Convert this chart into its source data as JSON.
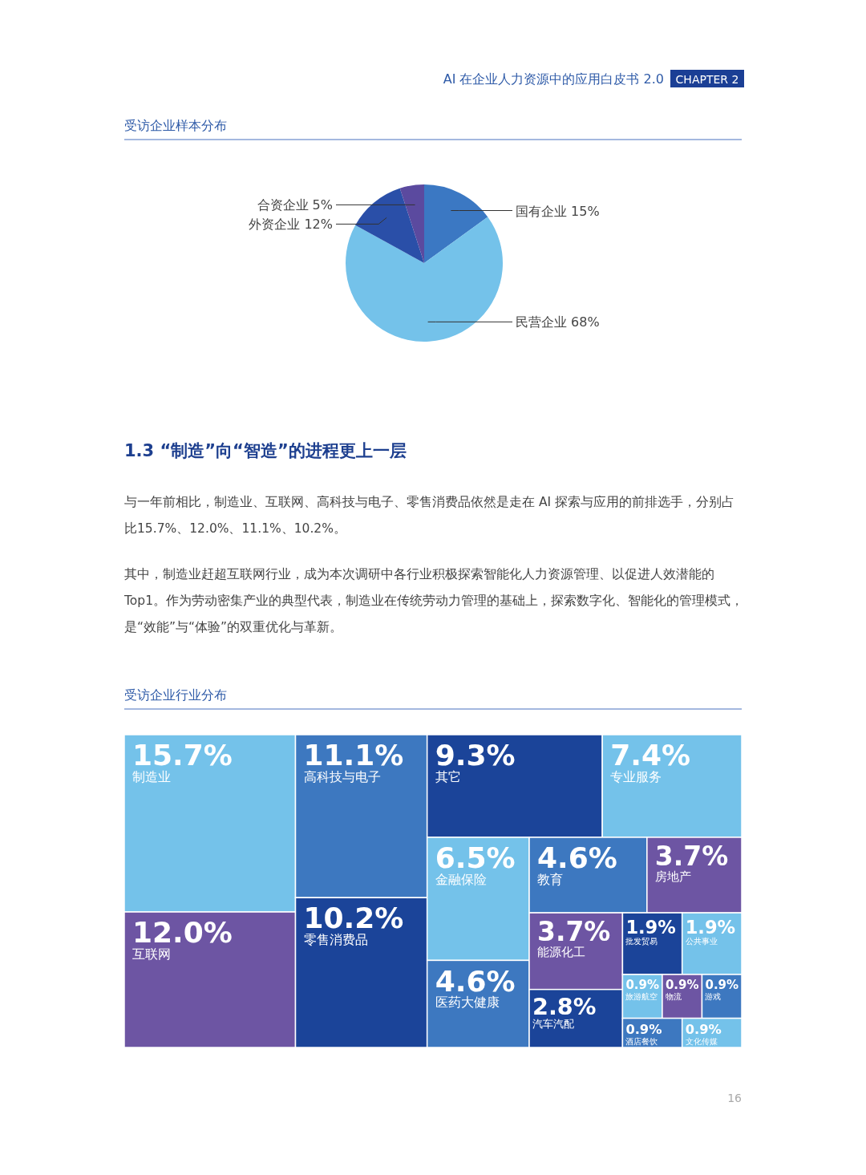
{
  "chart_data": [
    {
      "type": "pie",
      "title": "受访企业样本分布",
      "annotations": [
        "AI 在企业人力资源中的应用白皮书 2.0",
        "CHAPTER 2"
      ],
      "categories": [
        "国有企业",
        "民营企业",
        "外资企业",
        "合资企业"
      ],
      "values": [
        15,
        68,
        12,
        5
      ],
      "value_labels": [
        "15%",
        "68%",
        "12%",
        "5%"
      ],
      "colors": [
        "#3b78c3",
        "#74c2ea",
        "#2a4fa8",
        "#5b4a9f"
      ]
    },
    {
      "type": "other",
      "title": "1.3 “制造”向“智造”的进程更上一层",
      "annotations": [
        "与一年前相比，制造业、互联网、高科技与电子、零售消费品依然是走在 AI 探索与应用的前排选手，分别占比15.7%、12.0%、11.1%、10.2%。",
        "其中，制造业赶超互联网行业，成为本次调研中各行业积极探索智能化人力资源管理、以促进人效潜能的Top1。作为劳动密集产业的典型代表，制造业在传统劳动力管理的基础上，探索数字化、智能化的管理模式，是“效能”与“体验”的双重优化与革新。"
      ]
    },
    {
      "type": "other",
      "title": "受访企业行业分布",
      "annotations": [
        "16"
      ],
      "categories": [
        "制造业",
        "互联网",
        "高科技与电子",
        "零售消费品",
        "其它",
        "专业服务",
        "金融保险",
        "医药大健康",
        "教育",
        "房地产",
        "能源化工",
        "汽车汽配",
        "批发贸易",
        "公共事业",
        "旅游航空",
        "物流",
        "游戏",
        "酒店餐饮",
        "文化传媒"
      ],
      "values": [
        15.7,
        12.0,
        11.1,
        10.2,
        9.3,
        7.4,
        6.5,
        4.6,
        4.6,
        3.7,
        3.7,
        2.8,
        1.9,
        1.9,
        0.9,
        0.9,
        0.9,
        0.9,
        0.9
      ],
      "value_labels": [
        "15.7%",
        "12.0%",
        "11.1%",
        "10.2%",
        "9.3%",
        "7.4%",
        "6.5%",
        "4.6%",
        "4.6%",
        "3.7%",
        "3.7%",
        "2.8%",
        "1.9%",
        "1.9%",
        "0.9%",
        "0.9%",
        "0.9%",
        "0.9%",
        "0.9%"
      ],
      "colors": [
        "#74c2ea",
        "#6d55a3",
        "#3d78c0",
        "#1b4499",
        "#1b4499",
        "#74c2ea",
        "#74c2ea",
        "#3d78c0",
        "#3d78c0",
        "#6d55a3",
        "#6d55a3",
        "#1b4499",
        "#1b4499",
        "#74c2ea",
        "#74c2ea",
        "#6d55a3",
        "#3d78c0",
        "#3d78c0",
        "#74c2ea"
      ]
    }
  ]
}
